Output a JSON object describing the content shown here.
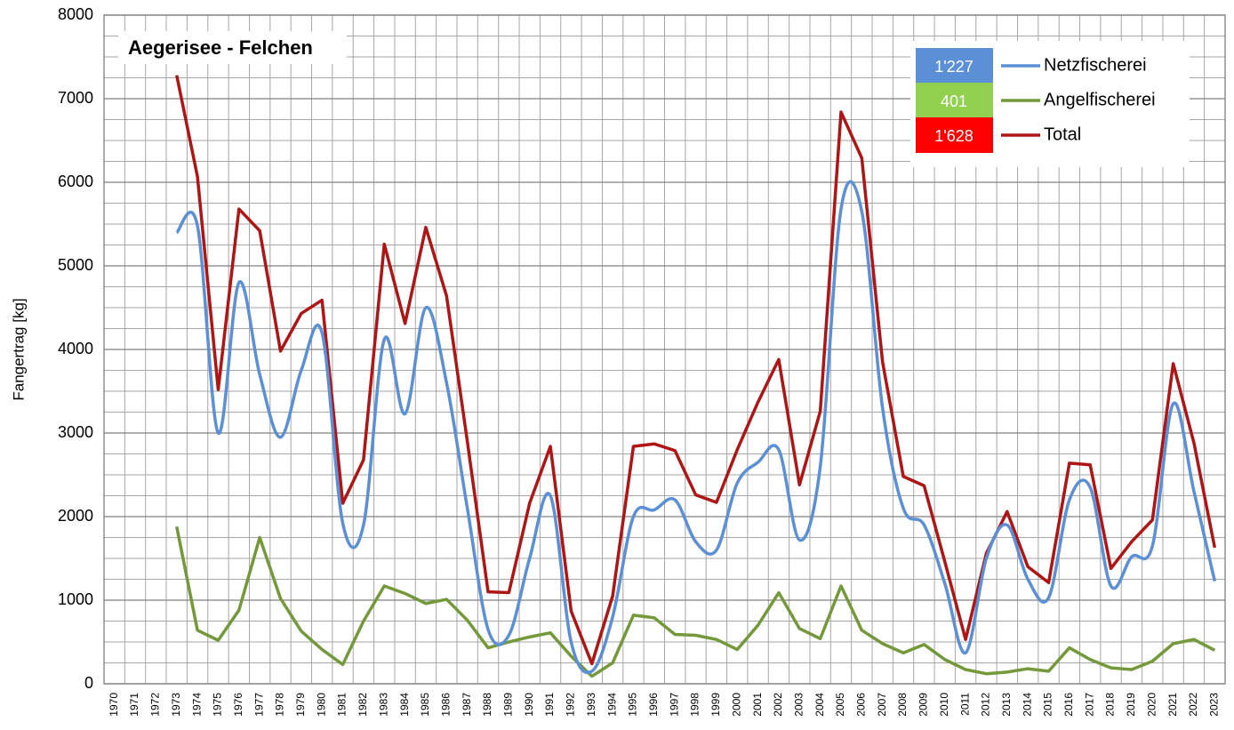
{
  "chart_data": {
    "type": "line",
    "title": "Aegerisee - Felchen",
    "y_label": "Fangertrag [kg]",
    "categories": [
      "1970",
      "1971",
      "1972",
      "1973",
      "1974",
      "1975",
      "1976",
      "1977",
      "1978",
      "1979",
      "1980",
      "1981",
      "1982",
      "1983",
      "1984",
      "1985",
      "1986",
      "1987",
      "1988",
      "1989",
      "1990",
      "1991",
      "1992",
      "1993",
      "1994",
      "1995",
      "1996",
      "1997",
      "1998",
      "1999",
      "2000",
      "2001",
      "2002",
      "2003",
      "2004",
      "2005",
      "2006",
      "2007",
      "2008",
      "2009",
      "2010",
      "2011",
      "2012",
      "2013",
      "2014",
      "2015",
      "2016",
      "2017",
      "2018",
      "2019",
      "2020",
      "2021",
      "2022",
      "2023"
    ],
    "series": [
      {
        "name": "Netzfischerei",
        "color": "#5b8fd6",
        "smooth": true,
        "last_label": "1'227",
        "values": [
          null,
          null,
          null,
          5400,
          5480,
          3000,
          4800,
          3700,
          2950,
          3750,
          4200,
          1920,
          1900,
          4120,
          3230,
          4500,
          3600,
          2100,
          650,
          580,
          1500,
          2250,
          500,
          150,
          800,
          2000,
          2080,
          2200,
          1700,
          1600,
          2400,
          2650,
          2800,
          1720,
          2600,
          5680,
          5650,
          3300,
          2100,
          1900,
          1200,
          370,
          1500,
          1900,
          1250,
          1030,
          2200,
          2350,
          1170,
          1520,
          1650,
          3350,
          2300,
          1227
        ]
      },
      {
        "name": "Angelfischerei",
        "color": "#73993a",
        "smooth": false,
        "last_label": "401",
        "label_color": "#92d050",
        "values": [
          null,
          null,
          null,
          1880,
          640,
          520,
          880,
          1750,
          1020,
          630,
          410,
          230,
          750,
          1170,
          1080,
          960,
          1010,
          760,
          430,
          500,
          560,
          610,
          330,
          90,
          250,
          820,
          790,
          590,
          580,
          530,
          410,
          700,
          1090,
          660,
          540,
          1170,
          640,
          480,
          370,
          470,
          290,
          170,
          120,
          140,
          180,
          150,
          430,
          290,
          190,
          170,
          270,
          480,
          530,
          401
        ]
      },
      {
        "name": "Total",
        "color": "#b01515",
        "smooth": false,
        "last_label": "1'628",
        "label_color": "#ff0000",
        "values": [
          null,
          null,
          null,
          7280,
          6070,
          3520,
          5680,
          5420,
          3980,
          4430,
          4590,
          2160,
          2680,
          5260,
          4310,
          5460,
          4640,
          2900,
          1100,
          1090,
          2160,
          2840,
          870,
          240,
          1050,
          2840,
          2870,
          2790,
          2260,
          2170,
          2800,
          3370,
          3880,
          2380,
          3260,
          6840,
          6290,
          3850,
          2480,
          2370,
          1460,
          530,
          1560,
          2060,
          1400,
          1210,
          2640,
          2620,
          1380,
          1700,
          1960,
          3830,
          2880,
          1628
        ]
      }
    ],
    "ylim": [
      0,
      8000
    ],
    "yticks": [
      0,
      1000,
      2000,
      3000,
      4000,
      5000,
      6000,
      7000,
      8000
    ],
    "grid": true,
    "minor_grid": true
  }
}
